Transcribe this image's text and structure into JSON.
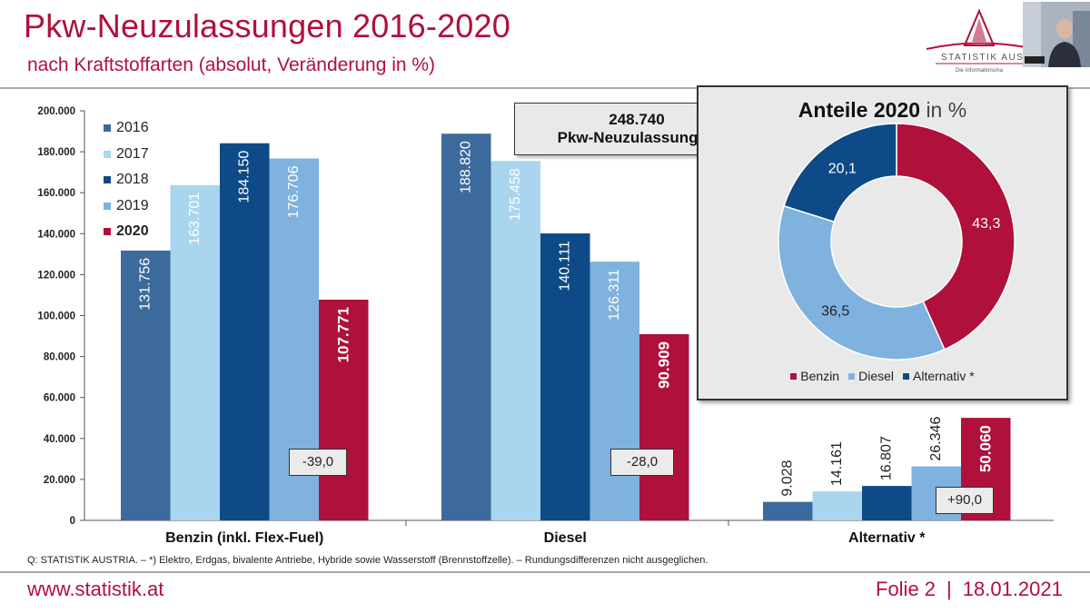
{
  "header": {
    "title": "Pkw-Neuzulassungen 2016-2020",
    "subtitle": "nach Kraftstoffarten (absolut, Veränderung in %)",
    "logo_text": "STATISTIK AUS",
    "logo_tagline": "Die Informationsma"
  },
  "colors": {
    "accent": "#b0103c",
    "y2016": "#3d6a9d",
    "y2017": "#a9d6ee",
    "y2018": "#0d4a87",
    "y2019": "#7fb2df",
    "y2020": "#b0103c",
    "benzin": "#b0103c",
    "diesel": "#7fb2df",
    "alternativ": "#0d4a87"
  },
  "chart_data": [
    {
      "type": "bar",
      "categories": [
        "Benzin (inkl. Flex-Fuel)",
        "Diesel",
        "Alternativ *"
      ],
      "series": [
        {
          "name": "2016",
          "values": [
            131756,
            188820,
            9028
          ],
          "labels": [
            "131.756",
            "188.820",
            "9.028"
          ]
        },
        {
          "name": "2017",
          "values": [
            163701,
            175458,
            14161
          ],
          "labels": [
            "163.701",
            "175.458",
            "14.161"
          ]
        },
        {
          "name": "2018",
          "values": [
            184150,
            140111,
            16807
          ],
          "labels": [
            "184.150",
            "140.111",
            "16.807"
          ]
        },
        {
          "name": "2019",
          "values": [
            176706,
            126311,
            26346
          ],
          "labels": [
            "176.706",
            "126.311",
            "26.346"
          ]
        },
        {
          "name": "2020",
          "values": [
            107771,
            90909,
            50060
          ],
          "labels": [
            "107.771",
            "90.909",
            "50.060"
          ]
        }
      ],
      "ylim": [
        0,
        200000
      ],
      "yticks": [
        "0",
        "20.000",
        "40.000",
        "60.000",
        "80.000",
        "100.000",
        "120.000",
        "140.000",
        "160.000",
        "180.000",
        "200.000"
      ],
      "changes": [
        "-39,0",
        "-28,0",
        "+90,0"
      ],
      "total_value": "248.740",
      "total_label": "Pkw-Neuzulassungen",
      "legend_placement": "top-left",
      "grid": false
    },
    {
      "type": "pie",
      "title_bold": "Anteile 2020",
      "title_rest": "in %",
      "labels": [
        "Benzin",
        "Diesel",
        "Alternativ *"
      ],
      "values": [
        43.3,
        36.5,
        20.1
      ],
      "value_labels": [
        "43,3",
        "36,5",
        "20,1"
      ]
    }
  ],
  "footer": {
    "source": "Q: STATISTIK AUSTRIA. – *) Elektro, Erdgas, bivalente Antriebe, Hybride sowie Wasserstoff (Brennstoffzelle). – Rundungsdifferenzen nicht ausgeglichen.",
    "website": "www.statistik.at",
    "slide": "Folie 2",
    "separator": "|",
    "date": "18.01.2021"
  }
}
